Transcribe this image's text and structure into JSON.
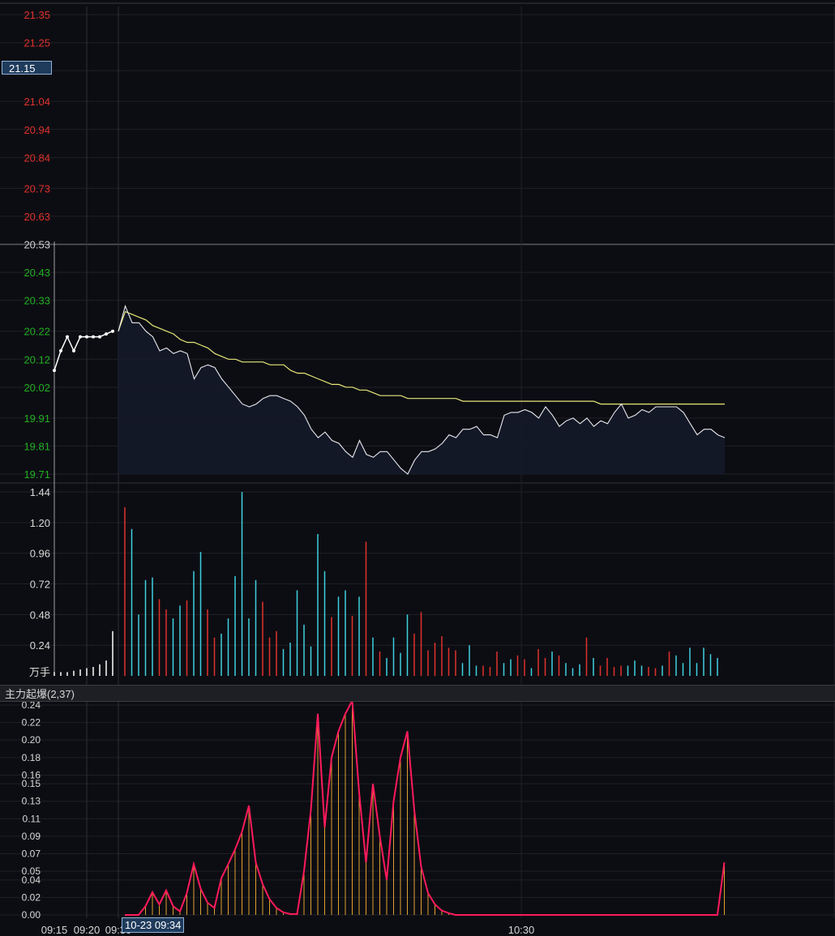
{
  "price_axis": {
    "ticks": [
      "21.35",
      "21.25",
      "21.15",
      "21.04",
      "20.94",
      "20.84",
      "20.73",
      "20.63",
      "20.53",
      "20.43",
      "20.33",
      "20.22",
      "20.12",
      "20.02",
      "19.91",
      "19.81",
      "19.71"
    ],
    "ref": "20.53",
    "cursor_price": "21.15",
    "colors": {
      "up": "#e0312d",
      "down": "#22b022",
      "flat": "#d0d0d0"
    }
  },
  "volume_axis": {
    "ticks": [
      "1.44",
      "1.20",
      "0.96",
      "0.72",
      "0.48",
      "0.24"
    ],
    "unit": "万手"
  },
  "indicator": {
    "label": "主力起爆(2,37)",
    "ticks": [
      "0.24",
      "0.22",
      "0.20",
      "0.18",
      "0.16",
      "0.15",
      "0.13",
      "0.11",
      "0.09",
      "0.07",
      "0.05",
      "0.04",
      "0.02",
      "0.00"
    ]
  },
  "time_axis": {
    "labels": [
      "09:15",
      "09:20",
      "09:30",
      "10:30"
    ],
    "cursor_time": "10-23 09:34"
  },
  "chart_data": [
    {
      "type": "line",
      "title": "",
      "y_range": [
        19.71,
        21.35
      ],
      "series": [
        {
          "values": [
            20.08,
            20.15,
            20.2,
            20.15,
            20.2,
            20.2,
            20.2,
            20.2,
            20.21,
            20.22
          ]
        },
        {
          "values": [
            20.22,
            20.31,
            20.25,
            20.25,
            20.22,
            20.2,
            20.15,
            20.16,
            20.14,
            20.15,
            20.14,
            20.05,
            20.09,
            20.1,
            20.09,
            20.05,
            20.02,
            19.99,
            19.96,
            19.95,
            19.96,
            19.98,
            19.99,
            19.99,
            19.98,
            19.97,
            19.95,
            19.92,
            19.87,
            19.84,
            19.86,
            19.83,
            19.82,
            19.79,
            19.77,
            19.83,
            19.78,
            19.77,
            19.79,
            19.79,
            19.76,
            19.73,
            19.71,
            19.76,
            19.79,
            19.79,
            19.8,
            19.82,
            19.85,
            19.84,
            19.87,
            19.87,
            19.88,
            19.85,
            19.85,
            19.84,
            19.92,
            19.93,
            19.93,
            19.94,
            19.93,
            19.91,
            19.95,
            19.92,
            19.88,
            19.9,
            19.91,
            19.89,
            19.91,
            19.88,
            19.9,
            19.89,
            19.93,
            19.96,
            19.91,
            19.92,
            19.94,
            19.93,
            19.95,
            19.95,
            19.95,
            19.95,
            19.93,
            19.89,
            19.85,
            19.87,
            19.87,
            19.85,
            19.84
          ]
        },
        {
          "values": [
            20.22,
            20.29,
            20.28,
            20.27,
            20.26,
            20.24,
            20.23,
            20.22,
            20.21,
            20.19,
            20.18,
            20.18,
            20.17,
            20.16,
            20.14,
            20.13,
            20.12,
            20.12,
            20.11,
            20.11,
            20.11,
            20.11,
            20.1,
            20.1,
            20.1,
            20.08,
            20.07,
            20.07,
            20.06,
            20.05,
            20.04,
            20.03,
            20.03,
            20.02,
            20.02,
            20.01,
            20.01,
            20.0,
            19.99,
            19.99,
            19.99,
            19.99,
            19.98,
            19.98,
            19.98,
            19.98,
            19.98,
            19.98,
            19.98,
            19.98,
            19.97,
            19.97,
            19.97,
            19.97,
            19.97,
            19.97,
            19.97,
            19.97,
            19.97,
            19.97,
            19.97,
            19.97,
            19.97,
            19.97,
            19.97,
            19.97,
            19.97,
            19.97,
            19.97,
            19.97,
            19.96,
            19.96,
            19.96,
            19.96,
            19.96,
            19.96,
            19.96,
            19.96,
            19.96,
            19.96,
            19.96,
            19.96,
            19.96,
            19.96,
            19.96,
            19.96,
            19.96,
            19.96,
            19.96
          ]
        }
      ]
    },
    {
      "type": "bar",
      "title": "",
      "y_range": [
        0,
        1.44
      ],
      "unit": "万手",
      "pre_values": [
        0.03,
        0.03,
        0.03,
        0.04,
        0.05,
        0.06,
        0.07,
        0.09,
        0.12,
        0.35
      ],
      "values": [
        1.32,
        1.15,
        0.48,
        0.75,
        0.77,
        0.6,
        0.52,
        0.45,
        0.55,
        0.59,
        0.82,
        0.97,
        0.52,
        0.3,
        0.33,
        0.45,
        0.78,
        1.44,
        0.45,
        0.75,
        0.58,
        0.3,
        0.35,
        0.21,
        0.26,
        0.67,
        0.4,
        0.23,
        1.11,
        0.82,
        0.46,
        0.62,
        0.67,
        0.47,
        0.62,
        1.05,
        0.3,
        0.19,
        0.14,
        0.3,
        0.18,
        0.48,
        0.33,
        0.5,
        0.2,
        0.26,
        0.31,
        0.22,
        0.2,
        0.1,
        0.24,
        0.08,
        0.08,
        0.07,
        0.19,
        0.1,
        0.13,
        0.16,
        0.13,
        0.06,
        0.21,
        0.14,
        0.19,
        0.16,
        0.1,
        0.06,
        0.09,
        0.3,
        0.14,
        0.08,
        0.14,
        0.07,
        0.08,
        0.08,
        0.12,
        0.08,
        0.07,
        0.06,
        0.08,
        0.19,
        0.16,
        0.1,
        0.22,
        0.1,
        0.22,
        0.17,
        0.14
      ],
      "colors": [
        "r",
        "c",
        "c",
        "c",
        "c",
        "r",
        "r",
        "c",
        "c",
        "r",
        "c",
        "c",
        "r",
        "r",
        "c",
        "c",
        "c",
        "c",
        "c",
        "c",
        "r",
        "r",
        "r",
        "c",
        "c",
        "c",
        "c",
        "c",
        "c",
        "c",
        "r",
        "c",
        "c",
        "r",
        "c",
        "r",
        "c",
        "r",
        "c",
        "c",
        "c",
        "c",
        "r",
        "r",
        "r",
        "r",
        "r",
        "r",
        "r",
        "c",
        "c",
        "c",
        "r",
        "r",
        "r",
        "c",
        "c",
        "r",
        "r",
        "c",
        "r",
        "r",
        "c",
        "r",
        "c",
        "c",
        "c",
        "r",
        "c",
        "r",
        "r",
        "r",
        "r",
        "c",
        "c",
        "c",
        "r",
        "r",
        "c",
        "r",
        "c",
        "c",
        "c",
        "c",
        "c",
        "c",
        "c"
      ]
    },
    {
      "type": "line",
      "title": "主力起爆(2,37)",
      "y_range": [
        0,
        0.24
      ],
      "values": [
        0,
        0,
        0,
        0.01,
        0.026,
        0.012,
        0.028,
        0.01,
        0.004,
        0.025,
        0.058,
        0.03,
        0.014,
        0.008,
        0.042,
        0.058,
        0.075,
        0.095,
        0.125,
        0.06,
        0.035,
        0.018,
        0.008,
        0.003,
        0.001,
        0.001,
        0.05,
        0.12,
        0.23,
        0.1,
        0.18,
        0.21,
        0.23,
        0.245,
        0.14,
        0.06,
        0.15,
        0.09,
        0.04,
        0.13,
        0.18,
        0.21,
        0.12,
        0.055,
        0.025,
        0.012,
        0.005,
        0.002,
        0,
        0,
        0,
        0,
        0,
        0,
        0,
        0,
        0,
        0,
        0,
        0,
        0,
        0,
        0,
        0,
        0,
        0,
        0,
        0,
        0,
        0,
        0,
        0,
        0,
        0,
        0,
        0,
        0,
        0,
        0,
        0,
        0,
        0,
        0,
        0,
        0,
        0,
        0,
        0.06
      ]
    }
  ]
}
